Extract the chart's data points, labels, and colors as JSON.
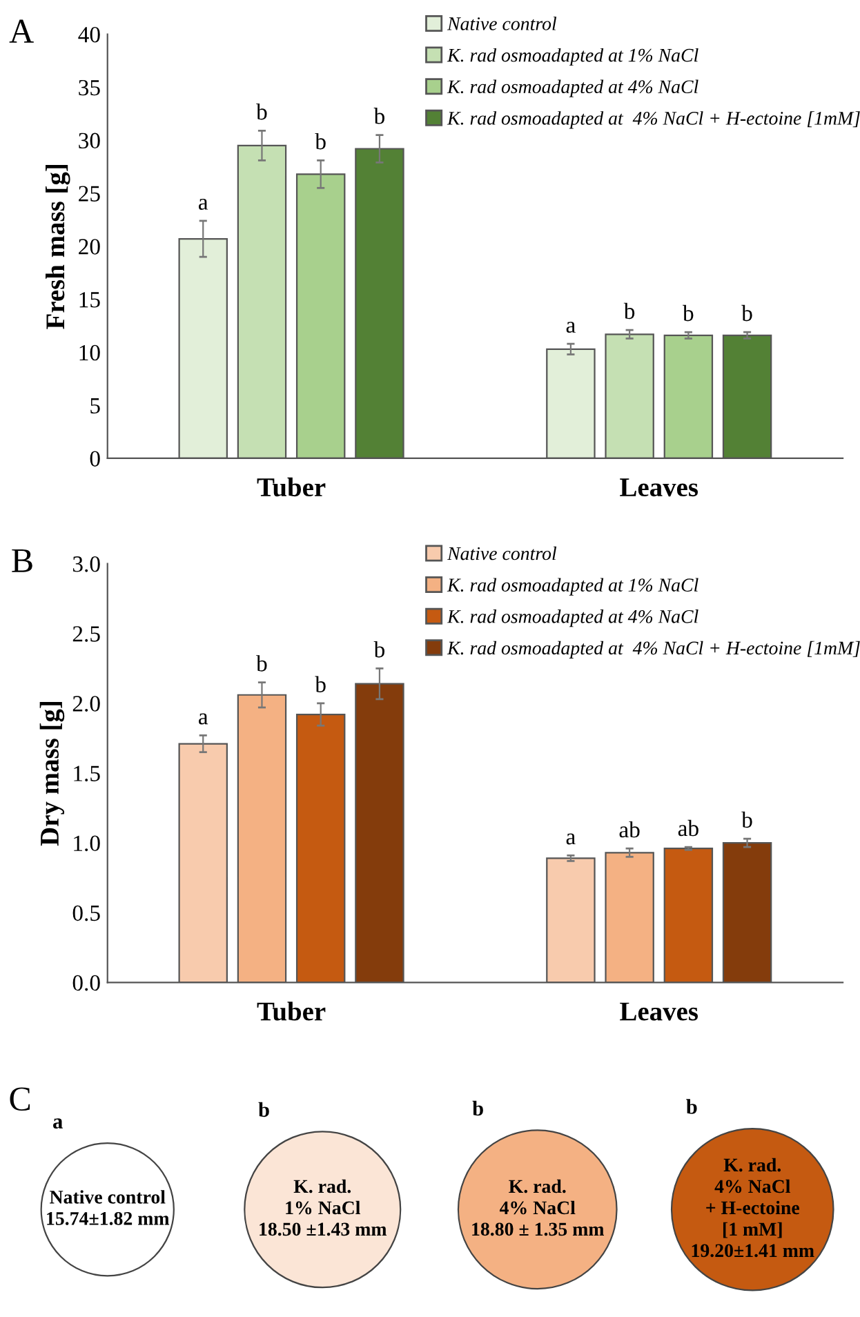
{
  "chart_data": [
    {
      "type": "bar",
      "title": "A",
      "ylabel": "Fresh mass [g]",
      "categories": [
        "Tuber",
        "Leaves"
      ],
      "ylim": [
        0,
        40
      ],
      "yticks": [
        0,
        5,
        10,
        15,
        20,
        25,
        30,
        35,
        40
      ],
      "grid": false,
      "legend": "top right",
      "series": [
        {
          "name": "Native control",
          "color": "#e2efd9",
          "values": [
            20.7,
            10.3
          ],
          "errors": [
            1.7,
            0.5
          ],
          "value_labels": [
            "a",
            "a"
          ]
        },
        {
          "name": "K. rad osmoadapted at 1% NaCl",
          "color": "#c5e0b3",
          "values": [
            29.5,
            11.7
          ],
          "errors": [
            1.4,
            0.4
          ],
          "value_labels": [
            "b",
            "b"
          ]
        },
        {
          "name": "K. rad osmoadapted at 4% NaCl",
          "color": "#a8d08d",
          "values": [
            26.8,
            11.6
          ],
          "errors": [
            1.3,
            0.3
          ],
          "value_labels": [
            "b",
            "b"
          ]
        },
        {
          "name": "K. rad osmoadapted at  4% NaCl + H-ectoine [1mM]",
          "color": "#538135",
          "values": [
            29.2,
            11.6
          ],
          "errors": [
            1.3,
            0.3
          ],
          "value_labels": [
            "b",
            "b"
          ]
        }
      ]
    },
    {
      "type": "bar",
      "title": "B",
      "ylabel": "Dry mass [g]",
      "categories": [
        "Tuber",
        "Leaves"
      ],
      "ylim": [
        0,
        3
      ],
      "yticks": [
        {
          "value": 0,
          "label": "0.0"
        },
        {
          "value": 0.5,
          "label": "0.5"
        },
        {
          "value": 1,
          "label": "1.0"
        },
        {
          "value": 1.5,
          "label": "1.5"
        },
        {
          "value": 2,
          "label": "2.0"
        },
        {
          "value": 2.5,
          "label": "2.5"
        },
        {
          "value": 3,
          "label": "3.0"
        }
      ],
      "grid": false,
      "legend": "top right",
      "series": [
        {
          "name": "Native control",
          "color": "#f8cbad",
          "values": [
            1.71,
            0.89
          ],
          "errors": [
            0.06,
            0.02
          ],
          "value_labels": [
            "a",
            "a"
          ]
        },
        {
          "name": "K. rad osmoadapted at 1% NaCl",
          "color": "#f4b183",
          "values": [
            2.06,
            0.93
          ],
          "errors": [
            0.09,
            0.03
          ],
          "value_labels": [
            "b",
            "ab"
          ]
        },
        {
          "name": "K. rad osmoadapted at 4% NaCl",
          "color": "#c55a11",
          "values": [
            1.92,
            0.96
          ],
          "errors": [
            0.08,
            0.01
          ],
          "value_labels": [
            "b",
            "ab"
          ]
        },
        {
          "name": "K. rad osmoadapted at  4% NaCl + H-ectoine [1mM]",
          "color": "#843c0c",
          "values": [
            2.14,
            1.0
          ],
          "errors": [
            0.11,
            0.03
          ],
          "value_labels": [
            "b",
            "b"
          ]
        }
      ]
    },
    {
      "type": "other",
      "title": "C",
      "categories": [
        "Native control",
        "K. rad.\n1% NaCl",
        "K. rad.\n4% NaCl",
        "K. rad.\n4% NaCl\n+ H-ectoine\n[1 mM]"
      ],
      "values": [
        15.74,
        18.5,
        18.8,
        19.2
      ],
      "colors": [
        "#ffffff",
        "#fbe5d6",
        "#f4b183",
        "#c55a11"
      ],
      "value_labels": [
        "15.74±1.82 mm",
        "18.50 ±1.43 mm",
        "18.80 ± 1.35 mm",
        "19.20±1.41 mm"
      ],
      "annotations": [
        "a",
        "b",
        "b",
        "b"
      ]
    }
  ]
}
